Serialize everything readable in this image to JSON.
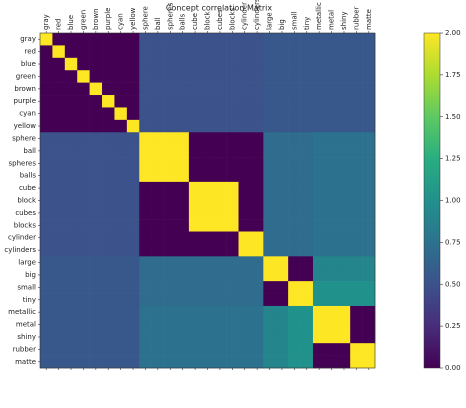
{
  "chart_data": {
    "type": "heatmap",
    "title": "Concept correlation Matrix",
    "colormap": "viridis",
    "labels": [
      "gray",
      "red",
      "blue",
      "green",
      "brown",
      "purple",
      "cyan",
      "yellow",
      "sphere",
      "ball",
      "spheres",
      "balls",
      "cube",
      "block",
      "cubes",
      "blocks",
      "cylinder",
      "cylinders",
      "large",
      "big",
      "small",
      "tiny",
      "metallic",
      "metal",
      "shiny",
      "rubber",
      "matte"
    ],
    "zlim": [
      0,
      2
    ],
    "zticks": [
      {
        "value": 0,
        "label": "0.00"
      },
      {
        "value": 0.25,
        "label": "0.25"
      },
      {
        "value": 0.5,
        "label": "0.50"
      },
      {
        "value": 0.75,
        "label": "0.75"
      },
      {
        "value": 1,
        "label": "1.00"
      },
      {
        "value": 1.25,
        "label": "1.25"
      },
      {
        "value": 1.5,
        "label": "1.50"
      },
      {
        "value": 1.75,
        "label": "1.75"
      },
      {
        "value": 2,
        "label": "2.00"
      }
    ],
    "z": [
      [
        2,
        0,
        0,
        0,
        0,
        0,
        0,
        0,
        0.5,
        0.5,
        0.5,
        0.5,
        0.5,
        0.5,
        0.5,
        0.5,
        0.5,
        0.5,
        0.55,
        0.55,
        0.55,
        0.55,
        0.55,
        0.55,
        0.55,
        0.55,
        0.55
      ],
      [
        0,
        2,
        0,
        0,
        0,
        0,
        0,
        0,
        0.5,
        0.5,
        0.5,
        0.5,
        0.5,
        0.5,
        0.5,
        0.5,
        0.5,
        0.5,
        0.55,
        0.55,
        0.55,
        0.55,
        0.55,
        0.55,
        0.55,
        0.55,
        0.55
      ],
      [
        0,
        0,
        2,
        0,
        0,
        0,
        0,
        0,
        0.5,
        0.5,
        0.5,
        0.5,
        0.5,
        0.5,
        0.5,
        0.5,
        0.5,
        0.5,
        0.55,
        0.55,
        0.55,
        0.55,
        0.55,
        0.55,
        0.55,
        0.55,
        0.55
      ],
      [
        0,
        0,
        0,
        2,
        0,
        0,
        0,
        0,
        0.5,
        0.5,
        0.5,
        0.5,
        0.5,
        0.5,
        0.5,
        0.5,
        0.5,
        0.5,
        0.55,
        0.55,
        0.55,
        0.55,
        0.55,
        0.55,
        0.55,
        0.55,
        0.55
      ],
      [
        0,
        0,
        0,
        0,
        2,
        0,
        0,
        0,
        0.5,
        0.5,
        0.5,
        0.5,
        0.5,
        0.5,
        0.5,
        0.5,
        0.5,
        0.5,
        0.55,
        0.55,
        0.55,
        0.55,
        0.55,
        0.55,
        0.55,
        0.55,
        0.55
      ],
      [
        0,
        0,
        0,
        0,
        0,
        2,
        0,
        0,
        0.5,
        0.5,
        0.5,
        0.5,
        0.5,
        0.5,
        0.5,
        0.5,
        0.5,
        0.5,
        0.55,
        0.55,
        0.55,
        0.55,
        0.55,
        0.55,
        0.55,
        0.55,
        0.55
      ],
      [
        0,
        0,
        0,
        0,
        0,
        0,
        2,
        0,
        0.5,
        0.5,
        0.5,
        0.5,
        0.5,
        0.5,
        0.5,
        0.5,
        0.5,
        0.5,
        0.55,
        0.55,
        0.55,
        0.55,
        0.55,
        0.55,
        0.55,
        0.55,
        0.55
      ],
      [
        0,
        0,
        0,
        0,
        0,
        0,
        0,
        2,
        0.5,
        0.5,
        0.5,
        0.5,
        0.5,
        0.5,
        0.5,
        0.5,
        0.5,
        0.5,
        0.55,
        0.55,
        0.55,
        0.55,
        0.55,
        0.55,
        0.55,
        0.55,
        0.55
      ],
      [
        0.5,
        0.5,
        0.5,
        0.5,
        0.5,
        0.5,
        0.5,
        0.5,
        2,
        2,
        2,
        2,
        0,
        0,
        0,
        0,
        0,
        0,
        0.7,
        0.7,
        0.7,
        0.7,
        0.75,
        0.75,
        0.75,
        0.75,
        0.75
      ],
      [
        0.5,
        0.5,
        0.5,
        0.5,
        0.5,
        0.5,
        0.5,
        0.5,
        2,
        2,
        2,
        2,
        0,
        0,
        0,
        0,
        0,
        0,
        0.7,
        0.7,
        0.7,
        0.7,
        0.75,
        0.75,
        0.75,
        0.75,
        0.75
      ],
      [
        0.5,
        0.5,
        0.5,
        0.5,
        0.5,
        0.5,
        0.5,
        0.5,
        2,
        2,
        2,
        2,
        0,
        0,
        0,
        0,
        0,
        0,
        0.7,
        0.7,
        0.7,
        0.7,
        0.75,
        0.75,
        0.75,
        0.75,
        0.75
      ],
      [
        0.5,
        0.5,
        0.5,
        0.5,
        0.5,
        0.5,
        0.5,
        0.5,
        2,
        2,
        2,
        2,
        0,
        0,
        0,
        0,
        0,
        0,
        0.7,
        0.7,
        0.7,
        0.7,
        0.75,
        0.75,
        0.75,
        0.75,
        0.75
      ],
      [
        0.5,
        0.5,
        0.5,
        0.5,
        0.5,
        0.5,
        0.5,
        0.5,
        0,
        0,
        0,
        0,
        2,
        2,
        2,
        2,
        0,
        0,
        0.7,
        0.7,
        0.7,
        0.7,
        0.75,
        0.75,
        0.75,
        0.75,
        0.75
      ],
      [
        0.5,
        0.5,
        0.5,
        0.5,
        0.5,
        0.5,
        0.5,
        0.5,
        0,
        0,
        0,
        0,
        2,
        2,
        2,
        2,
        0,
        0,
        0.7,
        0.7,
        0.7,
        0.7,
        0.75,
        0.75,
        0.75,
        0.75,
        0.75
      ],
      [
        0.5,
        0.5,
        0.5,
        0.5,
        0.5,
        0.5,
        0.5,
        0.5,
        0,
        0,
        0,
        0,
        2,
        2,
        2,
        2,
        0,
        0,
        0.7,
        0.7,
        0.7,
        0.7,
        0.75,
        0.75,
        0.75,
        0.75,
        0.75
      ],
      [
        0.5,
        0.5,
        0.5,
        0.5,
        0.5,
        0.5,
        0.5,
        0.5,
        0,
        0,
        0,
        0,
        2,
        2,
        2,
        2,
        0,
        0,
        0.7,
        0.7,
        0.7,
        0.7,
        0.75,
        0.75,
        0.75,
        0.75,
        0.75
      ],
      [
        0.5,
        0.5,
        0.5,
        0.5,
        0.5,
        0.5,
        0.5,
        0.5,
        0,
        0,
        0,
        0,
        0,
        0,
        0,
        0,
        2,
        2,
        0.7,
        0.7,
        0.7,
        0.7,
        0.75,
        0.75,
        0.75,
        0.75,
        0.75
      ],
      [
        0.5,
        0.5,
        0.5,
        0.5,
        0.5,
        0.5,
        0.5,
        0.5,
        0,
        0,
        0,
        0,
        0,
        0,
        0,
        0,
        2,
        2,
        0.7,
        0.7,
        0.7,
        0.7,
        0.75,
        0.75,
        0.75,
        0.75,
        0.75
      ],
      [
        0.55,
        0.55,
        0.55,
        0.55,
        0.55,
        0.55,
        0.55,
        0.55,
        0.7,
        0.7,
        0.7,
        0.7,
        0.7,
        0.7,
        0.7,
        0.7,
        0.7,
        0.7,
        2,
        2,
        0,
        0,
        0.9,
        0.9,
        0.9,
        0.9,
        0.9
      ],
      [
        0.55,
        0.55,
        0.55,
        0.55,
        0.55,
        0.55,
        0.55,
        0.55,
        0.7,
        0.7,
        0.7,
        0.7,
        0.7,
        0.7,
        0.7,
        0.7,
        0.7,
        0.7,
        2,
        2,
        0,
        0,
        0.9,
        0.9,
        0.9,
        0.9,
        0.9
      ],
      [
        0.55,
        0.55,
        0.55,
        0.55,
        0.55,
        0.55,
        0.55,
        0.55,
        0.7,
        0.7,
        0.7,
        0.7,
        0.7,
        0.7,
        0.7,
        0.7,
        0.7,
        0.7,
        0,
        0,
        2,
        2,
        1,
        1,
        1,
        1,
        1
      ],
      [
        0.55,
        0.55,
        0.55,
        0.55,
        0.55,
        0.55,
        0.55,
        0.55,
        0.7,
        0.7,
        0.7,
        0.7,
        0.7,
        0.7,
        0.7,
        0.7,
        0.7,
        0.7,
        0,
        0,
        2,
        2,
        1,
        1,
        1,
        1,
        1
      ],
      [
        0.55,
        0.55,
        0.55,
        0.55,
        0.55,
        0.55,
        0.55,
        0.55,
        0.75,
        0.75,
        0.75,
        0.75,
        0.75,
        0.75,
        0.75,
        0.75,
        0.75,
        0.75,
        0.9,
        0.9,
        1,
        1,
        2,
        2,
        2,
        0,
        0
      ],
      [
        0.55,
        0.55,
        0.55,
        0.55,
        0.55,
        0.55,
        0.55,
        0.55,
        0.75,
        0.75,
        0.75,
        0.75,
        0.75,
        0.75,
        0.75,
        0.75,
        0.75,
        0.75,
        0.9,
        0.9,
        1,
        1,
        2,
        2,
        2,
        0,
        0
      ],
      [
        0.55,
        0.55,
        0.55,
        0.55,
        0.55,
        0.55,
        0.55,
        0.55,
        0.75,
        0.75,
        0.75,
        0.75,
        0.75,
        0.75,
        0.75,
        0.75,
        0.75,
        0.75,
        0.9,
        0.9,
        1,
        1,
        2,
        2,
        2,
        0,
        0
      ],
      [
        0.55,
        0.55,
        0.55,
        0.55,
        0.55,
        0.55,
        0.55,
        0.55,
        0.75,
        0.75,
        0.75,
        0.75,
        0.75,
        0.75,
        0.75,
        0.75,
        0.75,
        0.75,
        0.9,
        0.9,
        1,
        1,
        0,
        0,
        0,
        2,
        2
      ],
      [
        0.55,
        0.55,
        0.55,
        0.55,
        0.55,
        0.55,
        0.55,
        0.55,
        0.75,
        0.75,
        0.75,
        0.75,
        0.75,
        0.75,
        0.75,
        0.75,
        0.75,
        0.75,
        0.9,
        0.9,
        1,
        1,
        0,
        0,
        0,
        2,
        2
      ]
    ]
  }
}
